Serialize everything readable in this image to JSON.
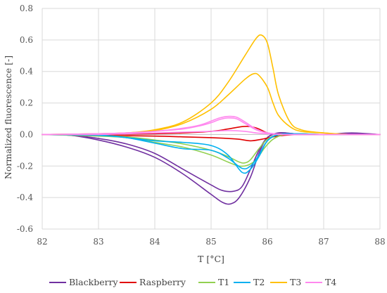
{
  "chart_data": {
    "type": "line",
    "title": "",
    "xlabel": "T [°C]",
    "ylabel": "Normalized fluorescence [-]",
    "xlim": [
      82,
      88
    ],
    "ylim": [
      -0.6,
      0.8
    ],
    "xticks": [
      "82",
      "83",
      "84",
      "85",
      "86",
      "87",
      "88"
    ],
    "yticks": [
      "-0.6",
      "-0.4",
      "-0.2",
      "0.0",
      "0.2",
      "0.4",
      "0.6",
      "0.8"
    ],
    "grid": "vertical and horizontal major gridlines",
    "legend_position": "bottom",
    "series": [
      {
        "name": "Blackberry",
        "color": "#7030a0",
        "curves": [
          {
            "x": [
              82.0,
              82.5,
              83.0,
              83.5,
              84.0,
              84.5,
              85.0,
              85.2,
              85.35,
              85.5,
              85.7,
              85.85,
              86.0,
              86.2,
              86.5,
              87.0,
              87.5,
              88.0
            ],
            "y": [
              0.0,
              -0.005,
              -0.035,
              -0.08,
              -0.145,
              -0.25,
              -0.38,
              -0.43,
              -0.44,
              -0.4,
              -0.27,
              -0.12,
              -0.02,
              0.01,
              0.005,
              0.0,
              0.005,
              0.0
            ]
          },
          {
            "x": [
              82.0,
              82.5,
              83.0,
              83.5,
              84.0,
              84.5,
              85.0,
              85.2,
              85.4,
              85.55,
              85.7,
              85.85,
              86.0,
              86.2,
              86.5,
              87.0,
              87.5,
              88.0
            ],
            "y": [
              0.0,
              -0.005,
              -0.025,
              -0.06,
              -0.12,
              -0.22,
              -0.32,
              -0.355,
              -0.36,
              -0.33,
              -0.22,
              -0.1,
              -0.02,
              0.01,
              0.005,
              0.0,
              0.01,
              0.0
            ]
          }
        ]
      },
      {
        "name": "Raspberry",
        "color": "#e00000",
        "curves": [
          {
            "x": [
              82.0,
              83.0,
              84.0,
              84.5,
              85.0,
              85.3,
              85.55,
              85.7,
              85.85,
              86.0,
              86.2,
              86.5,
              87.0,
              88.0
            ],
            "y": [
              0.0,
              0.0,
              0.005,
              0.01,
              0.02,
              0.035,
              0.05,
              0.05,
              0.035,
              0.01,
              0.0,
              0.0,
              0.0,
              0.0
            ]
          },
          {
            "x": [
              82.0,
              83.0,
              84.0,
              84.5,
              85.0,
              85.3,
              85.5,
              85.7,
              85.9,
              86.1,
              86.3,
              86.6,
              87.0,
              88.0
            ],
            "y": [
              0.0,
              -0.005,
              -0.01,
              -0.015,
              -0.02,
              -0.025,
              -0.03,
              -0.04,
              -0.03,
              -0.015,
              -0.005,
              0.0,
              0.0,
              0.0
            ]
          }
        ]
      },
      {
        "name": "T1",
        "color": "#92d050",
        "curves": [
          {
            "x": [
              82.0,
              83.0,
              83.5,
              84.0,
              84.5,
              85.0,
              85.3,
              85.5,
              85.6,
              85.7,
              85.85,
              86.0,
              86.2,
              86.5,
              87.0,
              88.0
            ],
            "y": [
              0.0,
              -0.005,
              -0.015,
              -0.035,
              -0.06,
              -0.1,
              -0.14,
              -0.175,
              -0.18,
              -0.16,
              -0.09,
              -0.03,
              0.0,
              0.005,
              0.0,
              0.0
            ]
          },
          {
            "x": [
              82.0,
              83.0,
              83.5,
              84.0,
              84.5,
              85.0,
              85.3,
              85.5,
              85.65,
              85.8,
              85.95,
              86.1,
              86.3,
              86.6,
              87.0,
              88.0
            ],
            "y": [
              0.0,
              -0.01,
              -0.02,
              -0.05,
              -0.08,
              -0.13,
              -0.175,
              -0.2,
              -0.195,
              -0.16,
              -0.085,
              -0.03,
              0.0,
              0.005,
              0.0,
              0.0
            ]
          }
        ]
      },
      {
        "name": "T2",
        "color": "#00b0f0",
        "curves": [
          {
            "x": [
              82.0,
              83.0,
              83.5,
              84.0,
              84.5,
              85.0,
              85.3,
              85.55,
              85.7,
              85.85,
              86.0,
              86.2,
              86.5,
              87.0,
              88.0
            ],
            "y": [
              0.0,
              -0.005,
              -0.02,
              -0.055,
              -0.09,
              -0.1,
              -0.15,
              -0.215,
              -0.2,
              -0.13,
              -0.04,
              0.0,
              0.005,
              0.0,
              0.0
            ]
          },
          {
            "x": [
              82.0,
              83.0,
              83.5,
              84.0,
              84.5,
              85.0,
              85.3,
              85.55,
              85.7,
              85.85,
              86.0,
              86.2,
              86.5,
              87.0,
              88.0
            ],
            "y": [
              0.0,
              -0.005,
              -0.02,
              -0.04,
              -0.05,
              -0.07,
              -0.13,
              -0.24,
              -0.22,
              -0.14,
              -0.04,
              0.0,
              0.005,
              0.0,
              0.0
            ]
          }
        ]
      },
      {
        "name": "T3",
        "color": "#ffc000",
        "curves": [
          {
            "x": [
              82.0,
              83.0,
              83.5,
              84.0,
              84.5,
              85.0,
              85.3,
              85.6,
              85.8,
              85.9,
              86.0,
              86.1,
              86.2,
              86.4,
              86.6,
              87.0,
              87.5,
              88.0
            ],
            "y": [
              0.0,
              0.005,
              0.01,
              0.03,
              0.08,
              0.2,
              0.33,
              0.5,
              0.61,
              0.63,
              0.58,
              0.42,
              0.25,
              0.08,
              0.03,
              0.01,
              0.0,
              0.0
            ]
          },
          {
            "x": [
              82.0,
              83.0,
              83.5,
              84.0,
              84.5,
              85.0,
              85.3,
              85.6,
              85.75,
              85.85,
              86.0,
              86.1,
              86.2,
              86.4,
              86.6,
              87.0,
              87.5,
              88.0
            ],
            "y": [
              0.0,
              0.005,
              0.01,
              0.025,
              0.07,
              0.16,
              0.25,
              0.35,
              0.385,
              0.375,
              0.3,
              0.2,
              0.12,
              0.05,
              0.02,
              0.01,
              0.0,
              0.0
            ]
          }
        ]
      },
      {
        "name": "T4",
        "color": "#ff88ee",
        "curves": [
          {
            "x": [
              82.0,
              83.0,
              83.5,
              84.0,
              84.5,
              84.8,
              85.0,
              85.15,
              85.3,
              85.45,
              85.6,
              85.8,
              86.0,
              86.3,
              86.6,
              87.0,
              88.0
            ],
            "y": [
              0.0,
              0.005,
              0.01,
              0.02,
              0.04,
              0.06,
              0.085,
              0.105,
              0.115,
              0.11,
              0.08,
              0.035,
              0.01,
              0.0,
              0.0,
              0.0,
              0.0
            ]
          },
          {
            "x": [
              82.0,
              83.0,
              83.5,
              84.0,
              84.5,
              84.8,
              85.0,
              85.15,
              85.3,
              85.45,
              85.6,
              85.8,
              86.0,
              86.3,
              86.6,
              87.0,
              88.0
            ],
            "y": [
              0.0,
              0.005,
              0.01,
              0.02,
              0.035,
              0.055,
              0.075,
              0.095,
              0.105,
              0.1,
              0.07,
              0.03,
              0.01,
              0.0,
              0.0,
              0.0,
              0.0
            ]
          },
          {
            "x": [
              82.0,
              83.0,
              83.5,
              84.0,
              84.5,
              85.0,
              85.3,
              85.6,
              85.8,
              86.0,
              86.3,
              86.6,
              87.0,
              88.0
            ],
            "y": [
              0.0,
              0.0,
              0.005,
              0.01,
              0.015,
              0.02,
              0.025,
              0.02,
              0.01,
              0.005,
              0.0,
              0.0,
              0.0,
              0.0
            ]
          }
        ]
      }
    ]
  }
}
